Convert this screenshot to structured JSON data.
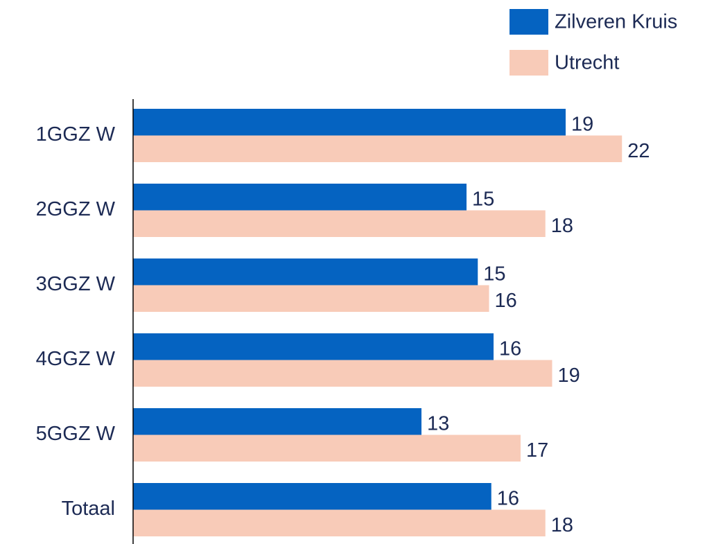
{
  "chart_data": {
    "type": "bar",
    "orientation": "horizontal",
    "categories": [
      "1GGZ W",
      "2GGZ W",
      "3GGZ W",
      "4GGZ W",
      "5GGZ W",
      "Totaal"
    ],
    "series": [
      {
        "name": "Zilveren Kruis",
        "color": "#0563c1",
        "values": [
          19.2,
          14.8,
          15.3,
          16.0,
          12.8,
          15.9
        ],
        "value_labels": [
          "19",
          "15",
          "15",
          "16",
          "13",
          "16"
        ]
      },
      {
        "name": "Utrecht",
        "color": "#f8cbb8",
        "values": [
          21.7,
          18.3,
          15.8,
          18.6,
          17.2,
          18.3
        ],
        "value_labels": [
          "22",
          "18",
          "16",
          "19",
          "17",
          "18"
        ]
      }
    ],
    "legend": "top-right"
  }
}
